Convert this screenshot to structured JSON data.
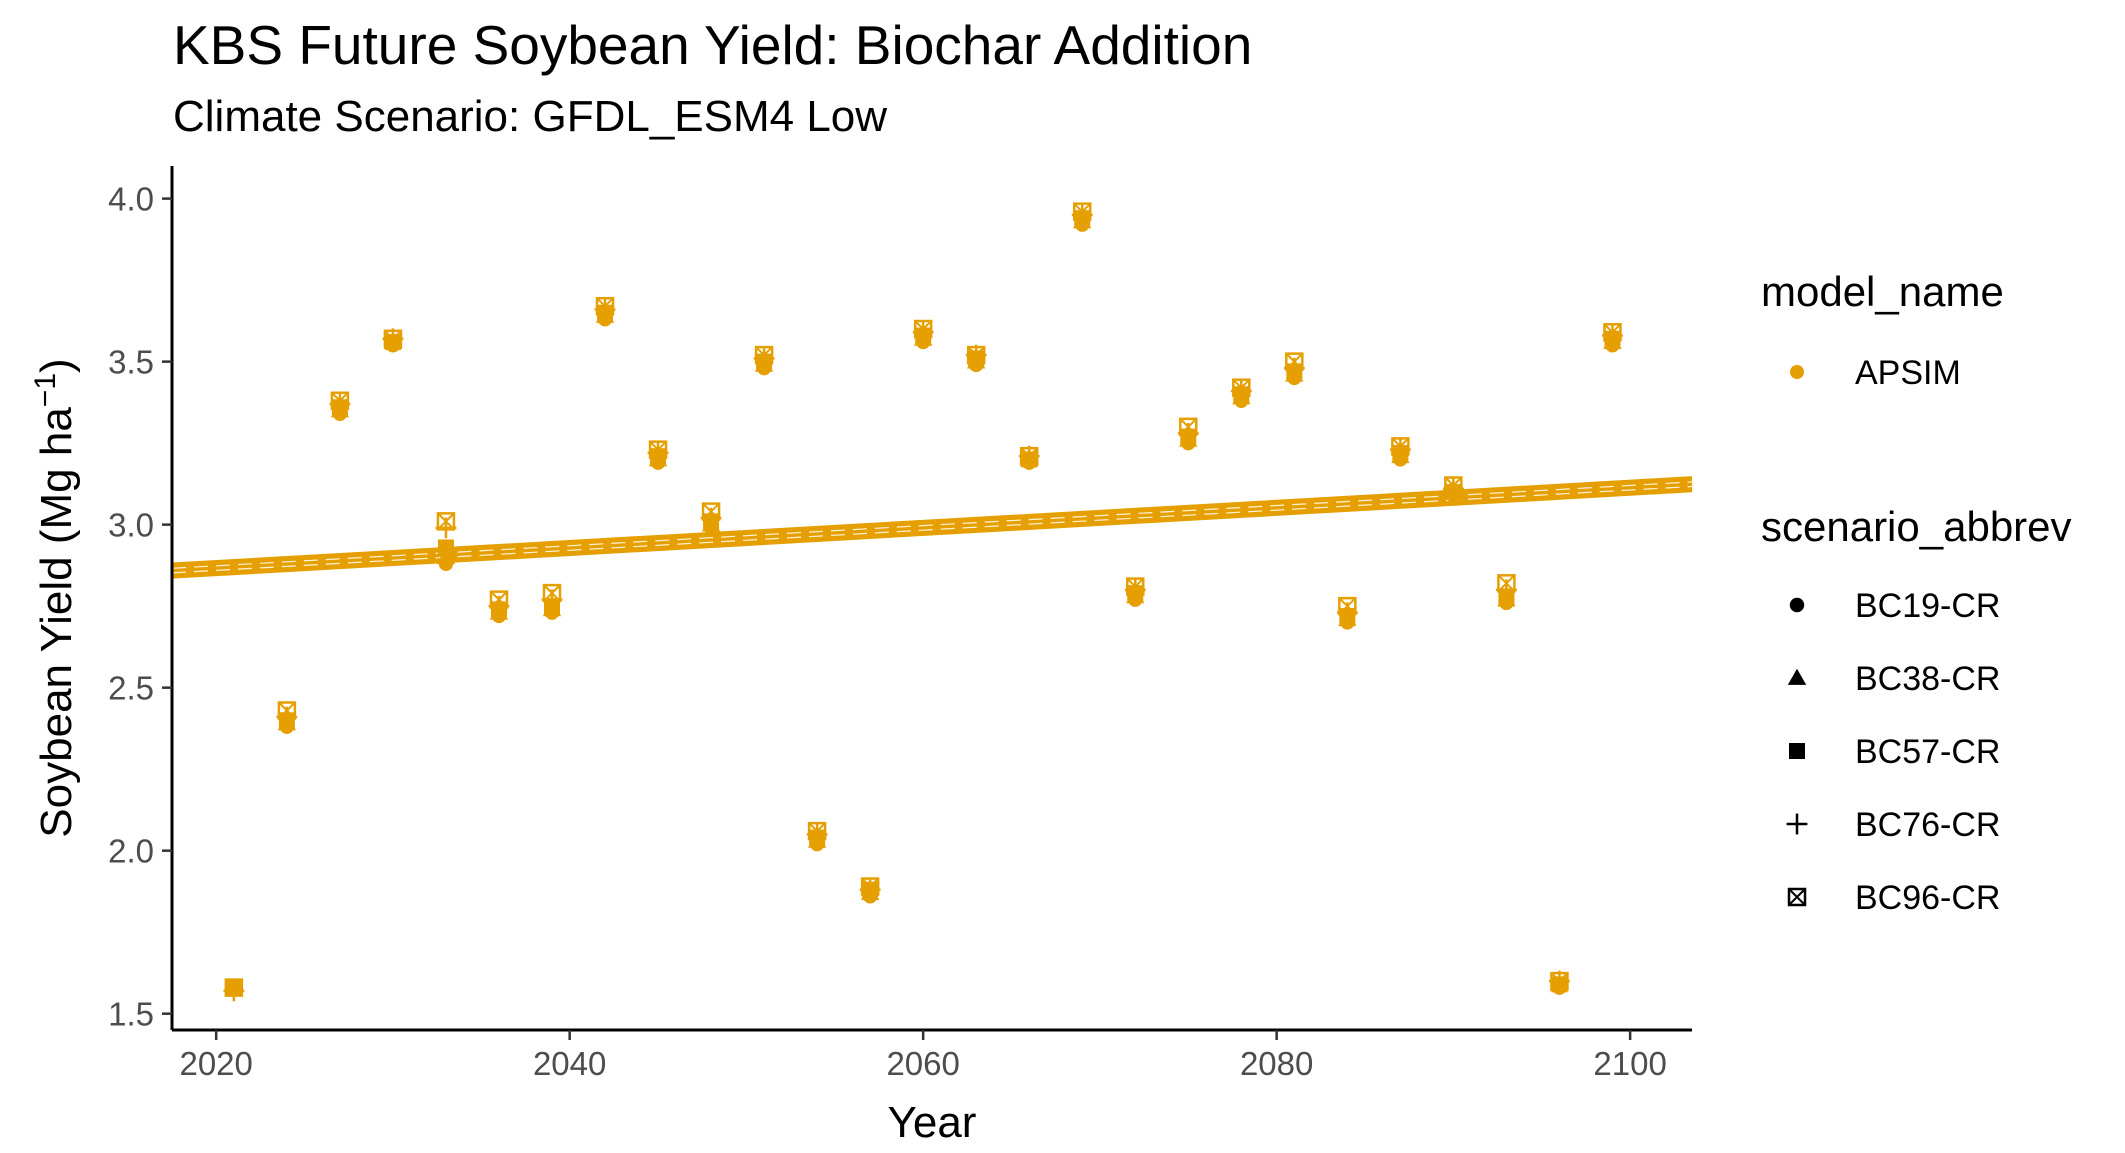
{
  "chart_data": {
    "type": "scatter",
    "title": "KBS Future Soybean Yield: Biochar Addition",
    "subtitle": "Climate Scenario: GFDL_ESM4 Low",
    "xlabel": "Year",
    "ylabel": "Soybean Yield (Mg ha",
    "ylabel_sup": "−1",
    "ylabel_close": ")",
    "xlim": [
      2017.5,
      2103.5
    ],
    "ylim": [
      1.45,
      4.1
    ],
    "x_ticks": [
      2020,
      2040,
      2060,
      2080,
      2100
    ],
    "y_ticks": [
      1.5,
      2.0,
      2.5,
      3.0,
      3.5,
      4.0
    ],
    "y_tick_labels": [
      "1.5",
      "2.0",
      "2.5",
      "3.0",
      "3.5",
      "4.0"
    ],
    "grid": false,
    "color": "#E69F00",
    "years": [
      2021,
      2024,
      2027,
      2030,
      2033,
      2036,
      2039,
      2042,
      2045,
      2048,
      2051,
      2054,
      2057,
      2060,
      2063,
      2066,
      2069,
      2072,
      2075,
      2078,
      2081,
      2084,
      2087,
      2090,
      2093,
      2096,
      2099
    ],
    "series": [
      {
        "name": "BC19-CR",
        "shape": "circle",
        "values": [
          1.58,
          2.38,
          3.34,
          3.55,
          2.88,
          2.72,
          2.73,
          3.63,
          3.19,
          2.99,
          3.48,
          2.02,
          1.86,
          3.56,
          3.49,
          3.19,
          3.92,
          2.77,
          3.25,
          3.38,
          3.45,
          2.7,
          3.2,
          3.09,
          2.76,
          1.58,
          3.55
        ]
      },
      {
        "name": "BC38-CR",
        "shape": "triangle",
        "values": [
          1.58,
          2.39,
          3.35,
          3.56,
          2.9,
          2.73,
          2.74,
          3.64,
          3.2,
          3.0,
          3.49,
          2.03,
          1.87,
          3.57,
          3.5,
          3.2,
          3.93,
          2.78,
          3.26,
          3.39,
          3.46,
          2.71,
          3.21,
          3.1,
          2.77,
          1.59,
          3.56
        ]
      },
      {
        "name": "BC57-CR",
        "shape": "square",
        "values": [
          1.58,
          2.4,
          3.36,
          3.56,
          2.93,
          2.74,
          2.75,
          3.65,
          3.21,
          3.01,
          3.5,
          2.04,
          1.88,
          3.58,
          3.51,
          3.2,
          3.94,
          2.79,
          3.27,
          3.4,
          3.47,
          2.72,
          3.22,
          3.1,
          2.78,
          1.59,
          3.57
        ]
      },
      {
        "name": "BC76-CR",
        "shape": "plus",
        "values": [
          1.57,
          2.41,
          3.37,
          3.57,
          2.99,
          2.75,
          2.77,
          3.66,
          3.22,
          3.02,
          3.51,
          2.05,
          1.88,
          3.59,
          3.52,
          3.21,
          3.95,
          2.8,
          3.28,
          3.41,
          3.48,
          2.73,
          3.23,
          3.11,
          2.8,
          1.6,
          3.58
        ]
      },
      {
        "name": "BC96-CR",
        "shape": "square-cross",
        "values": [
          1.58,
          2.43,
          3.38,
          3.57,
          3.01,
          2.77,
          2.79,
          3.67,
          3.23,
          3.04,
          3.52,
          2.06,
          1.89,
          3.6,
          3.52,
          3.21,
          3.96,
          2.81,
          3.3,
          3.42,
          3.5,
          2.75,
          3.24,
          3.12,
          2.82,
          1.6,
          3.59
        ]
      }
    ],
    "trend_lines": [
      {
        "name": "BC19-CR",
        "x": [
          2017.5,
          2103.5
        ],
        "y": [
          2.845,
          3.11
        ]
      },
      {
        "name": "BC38-CR",
        "x": [
          2017.5,
          2103.5
        ],
        "y": [
          2.852,
          3.117
        ]
      },
      {
        "name": "BC57-CR",
        "x": [
          2017.5,
          2103.5
        ],
        "y": [
          2.859,
          3.124
        ]
      },
      {
        "name": "BC76-CR",
        "x": [
          2017.5,
          2103.5
        ],
        "y": [
          2.866,
          3.131
        ]
      },
      {
        "name": "BC96-CR",
        "x": [
          2017.5,
          2103.5
        ],
        "y": [
          2.873,
          3.138
        ]
      }
    ],
    "legend": {
      "placement": "right",
      "model_title": "model_name",
      "model_items": [
        {
          "label": "APSIM"
        }
      ],
      "scenario_title": "scenario_abbrev",
      "scenario_items": [
        {
          "label": "BC19-CR",
          "shape": "circle"
        },
        {
          "label": "BC38-CR",
          "shape": "triangle"
        },
        {
          "label": "BC57-CR",
          "shape": "square"
        },
        {
          "label": "BC76-CR",
          "shape": "plus"
        },
        {
          "label": "BC96-CR",
          "shape": "square-cross"
        }
      ]
    }
  }
}
